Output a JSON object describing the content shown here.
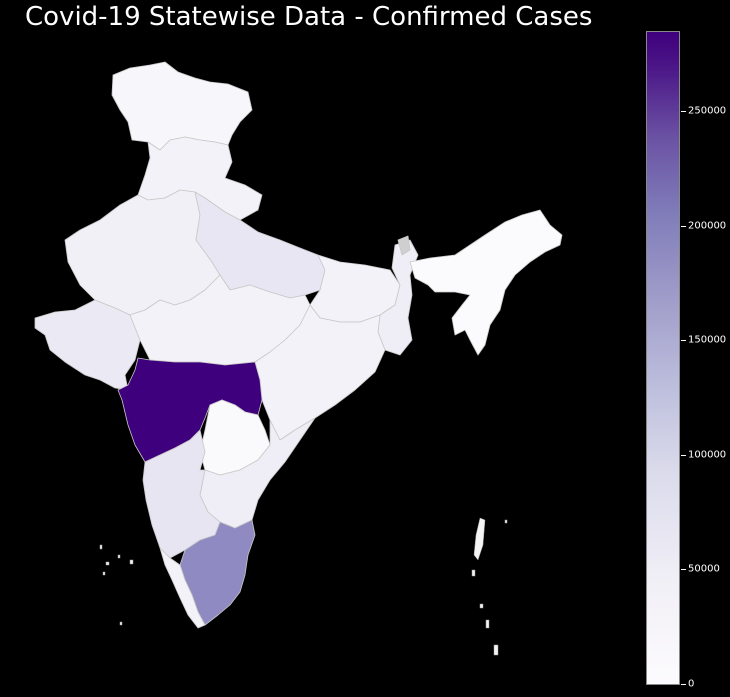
{
  "title": "Covid-19 Statewise Data - Confirmed Cases",
  "colorbar": {
    "min": 0,
    "max": 285000,
    "ticks": [
      "0",
      "50000",
      "100000",
      "150000",
      "200000",
      "250000"
    ],
    "colormap": "Purples",
    "low_color": "#fcfbfd",
    "high_color": "#3f007d"
  },
  "states": [
    {
      "name": "Maharashtra",
      "value": 285000,
      "color": "#3f007d"
    },
    {
      "name": "Tamil Nadu",
      "value": 145000,
      "color": "#8f8ac1"
    },
    {
      "name": "Karnataka",
      "value": 45000,
      "color": "#e6e5f1"
    },
    {
      "name": "Uttar Pradesh",
      "value": 40000,
      "color": "#e8e6f2"
    },
    {
      "name": "Gujarat",
      "value": 42000,
      "color": "#ebe9f3"
    },
    {
      "name": "Andhra Pradesh",
      "value": 32000,
      "color": "#efedf5"
    },
    {
      "name": "West Bengal",
      "value": 30000,
      "color": "#efeef6"
    },
    {
      "name": "Rajasthan",
      "value": 25000,
      "color": "#f1f0f7"
    },
    {
      "name": "Madhya Pradesh",
      "value": 20000,
      "color": "#f3f2f8"
    },
    {
      "name": "Jammu and Kashmir",
      "value": 12000,
      "color": "#f7f6fa"
    },
    {
      "name": "Telangana",
      "value": 8000,
      "color": "#fafafc"
    },
    {
      "name": "North East",
      "value": 5000,
      "color": "#fbfbfd"
    }
  ]
}
